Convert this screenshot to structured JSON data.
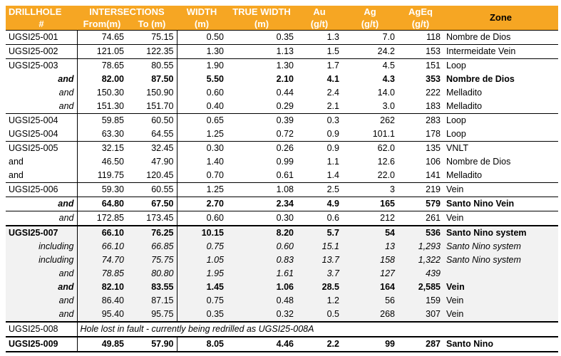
{
  "headers": {
    "drillhole": [
      "DRILLHOLE",
      "#"
    ],
    "intersections": "INTERSECTIONS",
    "from": "From(m)",
    "to": "To (m)",
    "width": [
      "WIDTH",
      "(m)"
    ],
    "true_width": [
      "TRUE WIDTH",
      "(m)"
    ],
    "au": [
      "Au",
      "(g/t)"
    ],
    "ag": [
      "Ag",
      "(g/t)"
    ],
    "ageq": [
      "AgEq",
      "(g/t)"
    ],
    "zone": "Zone"
  },
  "colors": {
    "header_bg": "#f6a623",
    "header_text": "#ffffff",
    "shade": "#f2f2f2"
  },
  "rows": [
    {
      "hole": "UGSI25-001",
      "from": "74.65",
      "to": "75.15",
      "width": "0.50",
      "tw": "0.35",
      "au": "1.3",
      "ag": "7.0",
      "ageq": "118",
      "zone": "Nombre de Dios"
    },
    {
      "hole": "UGSI25-002",
      "from": "121.05",
      "to": "122.35",
      "width": "1.30",
      "tw": "1.13",
      "au": "1.5",
      "ag": "24.2",
      "ageq": "153",
      "zone": "Intermeidate Vein"
    },
    {
      "hole": "UGSI25-003",
      "from": "78.65",
      "to": "80.55",
      "width": "1.90",
      "tw": "1.30",
      "au": "1.7",
      "ag": "4.5",
      "ageq": "151",
      "zone": "Loop"
    },
    {
      "hole": "and",
      "from": "82.00",
      "to": "87.50",
      "width": "5.50",
      "tw": "2.10",
      "au": "4.1",
      "ag": "4.3",
      "ageq": "353",
      "zone": "Nombre de Dios"
    },
    {
      "hole": "and",
      "from": "150.30",
      "to": "150.90",
      "width": "0.60",
      "tw": "0.44",
      "au": "2.4",
      "ag": "14.0",
      "ageq": "222",
      "zone": "Melladito"
    },
    {
      "hole": "and",
      "from": "151.30",
      "to": "151.70",
      "width": "0.40",
      "tw": "0.29",
      "au": "2.1",
      "ag": "3.0",
      "ageq": "183",
      "zone": "Melladito"
    },
    {
      "hole": "UGSI25-004",
      "from": "59.85",
      "to": "60.50",
      "width": "0.65",
      "tw": "0.39",
      "au": "0.3",
      "ag": "262",
      "ageq": "283",
      "zone": "Loop"
    },
    {
      "hole": "UGSI25-004",
      "from": "63.30",
      "to": "64.55",
      "width": "1.25",
      "tw": "0.72",
      "au": "0.9",
      "ag": "101.1",
      "ageq": "178",
      "zone": "Loop"
    },
    {
      "hole": "UGSI25-005",
      "from": "32.15",
      "to": "32.45",
      "width": "0.30",
      "tw": "0.26",
      "au": "0.9",
      "ag": "62.0",
      "ageq": "135",
      "zone": "VNLT"
    },
    {
      "hole": "and",
      "from": "46.50",
      "to": "47.90",
      "width": "1.40",
      "tw": "0.99",
      "au": "1.1",
      "ag": "12.6",
      "ageq": "106",
      "zone": "Nombre de Dios"
    },
    {
      "hole": "and",
      "from": "119.75",
      "to": "120.45",
      "width": "0.70",
      "tw": "0.61",
      "au": "1.4",
      "ag": "22.0",
      "ageq": "141",
      "zone": "Melladito"
    },
    {
      "hole": "UGSI25-006",
      "from": "59.30",
      "to": "60.55",
      "width": "1.25",
      "tw": "1.08",
      "au": "2.5",
      "ag": "3",
      "ageq": "219",
      "zone": "Vein"
    },
    {
      "hole": "and",
      "from": "64.80",
      "to": "67.50",
      "width": "2.70",
      "tw": "2.34",
      "au": "4.9",
      "ag": "165",
      "ageq": "579",
      "zone": "Santo Nino Vein"
    },
    {
      "hole": "and",
      "from": "172.85",
      "to": "173.45",
      "width": "0.60",
      "tw": "0.30",
      "au": "0.6",
      "ag": "212",
      "ageq": "261",
      "zone": "Vein"
    },
    {
      "hole": "UGSI25-007",
      "from": "66.10",
      "to": "76.25",
      "width": "10.15",
      "tw": "8.20",
      "au": "5.7",
      "ag": "54",
      "ageq": "536",
      "zone": "Santo Nino system"
    },
    {
      "hole": "including",
      "from": "66.10",
      "to": "66.85",
      "width": "0.75",
      "tw": "0.60",
      "au": "15.1",
      "ag": "13",
      "ageq": "1,293",
      "zone": "Santo Nino system"
    },
    {
      "hole": "including",
      "from": "74.70",
      "to": "75.75",
      "width": "1.05",
      "tw": "0.83",
      "au": "13.7",
      "ag": "158",
      "ageq": "1,322",
      "zone": "Santo Nino system"
    },
    {
      "hole": "and",
      "from": "78.85",
      "to": "80.80",
      "width": "1.95",
      "tw": "1.61",
      "au": "3.7",
      "ag": "127",
      "ageq": "439",
      "zone": ""
    },
    {
      "hole": "and",
      "from": "82.10",
      "to": "83.55",
      "width": "1.45",
      "tw": "1.06",
      "au": "28.5",
      "ag": "164",
      "ageq": "2,585",
      "zone": "Vein"
    },
    {
      "hole": "and",
      "from": "86.40",
      "to": "87.15",
      "width": "0.75",
      "tw": "0.48",
      "au": "1.2",
      "ag": "56",
      "ageq": "159",
      "zone": "Vein"
    },
    {
      "hole": "and",
      "from": "95.40",
      "to": "95.75",
      "width": "0.35",
      "tw": "0.32",
      "au": "0.5",
      "ag": "268",
      "ageq": "307",
      "zone": "Vein"
    },
    {
      "hole": "UGSI25-008",
      "note": "Hole lost in fault - currently being redrilled as UGSI25-008A"
    },
    {
      "hole": "UGSI25-009",
      "from": "49.85",
      "to": "57.90",
      "width": "8.05",
      "tw": "4.46",
      "au": "2.2",
      "ag": "99",
      "ageq": "287",
      "zone": "Santo Nino"
    }
  ]
}
